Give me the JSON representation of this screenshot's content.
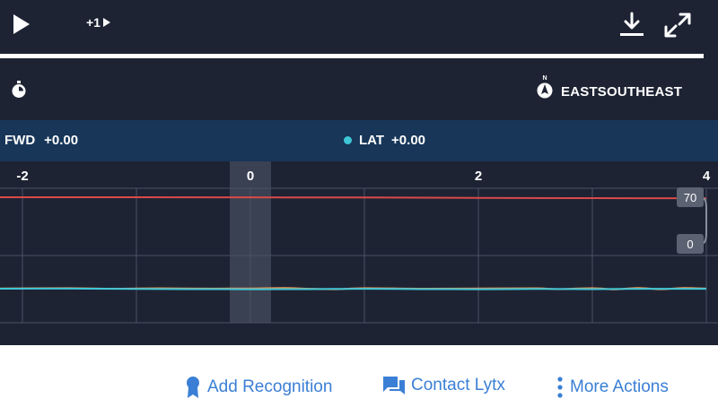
{
  "player": {
    "skip_label": "+1",
    "icons": {
      "play": "play-icon",
      "skip": "skip-forward-icon",
      "download": "download-icon",
      "fullscreen": "fullscreen-icon"
    },
    "progress_fraction": 0.98
  },
  "info": {
    "direction": "EASTSOUTHEAST",
    "compass_letter": "N",
    "icons": {
      "timer": "stopwatch-icon",
      "compass": "compass-icon"
    }
  },
  "legend": {
    "fwd": {
      "label": "FWD",
      "value": "+0.00"
    },
    "lat": {
      "label": "LAT",
      "value": "+0.00",
      "color": "#3fc7d8"
    }
  },
  "chart_data": {
    "type": "line",
    "x_ticks": [
      "-2",
      "0",
      "2",
      "4"
    ],
    "xlim": [
      -2.2,
      4
    ],
    "current_x": 0,
    "y_badges": [
      "70",
      "0"
    ],
    "ylim": [
      0,
      70
    ],
    "series": [
      {
        "color": "#d94a4a",
        "x": [
          -2.2,
          -1,
          0,
          1,
          2,
          3,
          4
        ],
        "y": [
          70,
          70,
          69.9,
          69.8,
          69.5,
          69.3,
          69.2
        ]
      },
      {
        "color": "#e08a4a",
        "x": [
          -2.2,
          -1.6,
          -1.2,
          -0.8,
          -0.4,
          0,
          0.3,
          0.5,
          0.75,
          1,
          1.5,
          2,
          2.5,
          2.7,
          3.0,
          3.2,
          3.4,
          3.6,
          3.8,
          4
        ],
        "y": [
          2.2,
          2.4,
          2.0,
          2.3,
          2.1,
          2.2,
          2.6,
          2.0,
          1.6,
          2.4,
          2.0,
          2.2,
          2.3,
          1.7,
          2.4,
          1.5,
          2.6,
          1.6,
          2.6,
          2.1
        ]
      },
      {
        "color": "#3fc7d8",
        "x": [
          -2.2,
          -1.6,
          -1,
          0,
          0.5,
          1,
          1.5,
          2,
          2.5,
          3,
          3.5,
          4
        ],
        "y": [
          2.0,
          2.1,
          1.8,
          1.6,
          1.7,
          1.9,
          1.7,
          1.6,
          1.8,
          1.7,
          1.9,
          1.9
        ]
      }
    ],
    "grid": true
  },
  "actions": [
    {
      "label": "Add Recognition",
      "icon": "award-ribbon-icon"
    },
    {
      "label": "Contact Lytx",
      "icon": "chat-bubbles-icon"
    },
    {
      "label": "More Actions",
      "icon": "more-vertical-icon"
    }
  ],
  "colors": {
    "panel_bg": "#1d2333",
    "legend_bg": "#173658",
    "link": "#3a7fd5"
  }
}
